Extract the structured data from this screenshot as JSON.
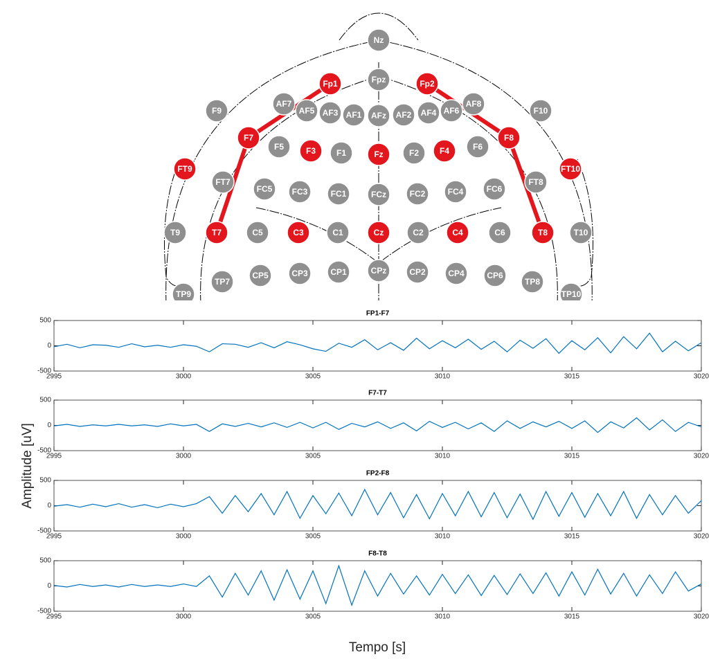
{
  "diagram": {
    "electrodes": [
      {
        "label": "Nz",
        "active": false
      },
      {
        "label": "Fp1",
        "active": true
      },
      {
        "label": "Fpz",
        "active": false
      },
      {
        "label": "Fp2",
        "active": true
      },
      {
        "label": "F9",
        "active": false
      },
      {
        "label": "AF7",
        "active": false
      },
      {
        "label": "AF5",
        "active": false
      },
      {
        "label": "AF3",
        "active": false
      },
      {
        "label": "AF1",
        "active": false
      },
      {
        "label": "AFz",
        "active": false
      },
      {
        "label": "AF2",
        "active": false
      },
      {
        "label": "AF4",
        "active": false
      },
      {
        "label": "AF6",
        "active": false
      },
      {
        "label": "AF8",
        "active": false
      },
      {
        "label": "F10",
        "active": false
      },
      {
        "label": "F7",
        "active": true
      },
      {
        "label": "F5",
        "active": false
      },
      {
        "label": "F3",
        "active": true
      },
      {
        "label": "F1",
        "active": false
      },
      {
        "label": "Fz",
        "active": true
      },
      {
        "label": "F2",
        "active": false
      },
      {
        "label": "F4",
        "active": true
      },
      {
        "label": "F6",
        "active": false
      },
      {
        "label": "F8",
        "active": true
      },
      {
        "label": "FT9",
        "active": true
      },
      {
        "label": "FT7",
        "active": false
      },
      {
        "label": "FC5",
        "active": false
      },
      {
        "label": "FC3",
        "active": false
      },
      {
        "label": "FC1",
        "active": false
      },
      {
        "label": "FCz",
        "active": false
      },
      {
        "label": "FC2",
        "active": false
      },
      {
        "label": "FC4",
        "active": false
      },
      {
        "label": "FC6",
        "active": false
      },
      {
        "label": "FT8",
        "active": false
      },
      {
        "label": "FT10",
        "active": true
      },
      {
        "label": "T9",
        "active": false
      },
      {
        "label": "T7",
        "active": true
      },
      {
        "label": "C5",
        "active": false
      },
      {
        "label": "C3",
        "active": true
      },
      {
        "label": "C1",
        "active": false
      },
      {
        "label": "Cz",
        "active": true
      },
      {
        "label": "C2",
        "active": false
      },
      {
        "label": "C4",
        "active": true
      },
      {
        "label": "C6",
        "active": false
      },
      {
        "label": "T8",
        "active": true
      },
      {
        "label": "T10",
        "active": false
      },
      {
        "label": "TP9",
        "active": false
      },
      {
        "label": "TP7",
        "active": false
      },
      {
        "label": "CP5",
        "active": false
      },
      {
        "label": "CP3",
        "active": false
      },
      {
        "label": "CP1",
        "active": false
      },
      {
        "label": "CPz",
        "active": false
      },
      {
        "label": "CP2",
        "active": false
      },
      {
        "label": "CP4",
        "active": false
      },
      {
        "label": "CP6",
        "active": false
      },
      {
        "label": "TP8",
        "active": false
      },
      {
        "label": "TP10",
        "active": false
      }
    ],
    "active_color": "#e3161d",
    "inactive_color": "#8f8f8f",
    "montage_color": "#e3161d"
  },
  "labels": {
    "y": "Amplitude [uV]",
    "x": "Tempo [s]"
  },
  "chart_data": [
    {
      "type": "line",
      "title": "FP1-F7",
      "color": "#0072bd",
      "xlim": [
        2995,
        3020
      ],
      "xticks": [
        2995,
        3000,
        3005,
        3010,
        3015,
        3020
      ],
      "ylim": [
        -500,
        500
      ],
      "yticks": [
        -500,
        0,
        500
      ],
      "x": [
        2995,
        2995.5,
        2996,
        2996.5,
        2997,
        2997.5,
        2998,
        2998.5,
        2999,
        2999.5,
        3000,
        3000.5,
        3001,
        3001.5,
        3002,
        3002.5,
        3003,
        3003.5,
        3004,
        3004.5,
        3005,
        3005.5,
        3006,
        3006.5,
        3007,
        3007.5,
        3008,
        3008.5,
        3009,
        3009.5,
        3010,
        3010.5,
        3011,
        3011.5,
        3012,
        3012.5,
        3013,
        3013.5,
        3014,
        3014.5,
        3015,
        3015.5,
        3016,
        3016.5,
        3017,
        3017.5,
        3018,
        3018.5,
        3019,
        3019.5,
        3020
      ],
      "values": [
        -20,
        30,
        -40,
        20,
        10,
        -30,
        40,
        -20,
        10,
        -30,
        20,
        -10,
        -120,
        40,
        30,
        -30,
        60,
        -40,
        80,
        20,
        -60,
        -110,
        50,
        -30,
        120,
        -80,
        60,
        -90,
        150,
        -60,
        100,
        -40,
        130,
        -70,
        90,
        -120,
        110,
        -50,
        140,
        -150,
        100,
        -80,
        160,
        -140,
        180,
        -60,
        250,
        -120,
        90,
        -100,
        60
      ]
    },
    {
      "type": "line",
      "title": "F7-T7",
      "color": "#0072bd",
      "xlim": [
        2995,
        3020
      ],
      "xticks": [
        2995,
        3000,
        3005,
        3010,
        3015,
        3020
      ],
      "ylim": [
        -500,
        500
      ],
      "yticks": [
        -500,
        0,
        500
      ],
      "x": [
        2995,
        2995.5,
        2996,
        2996.5,
        2997,
        2997.5,
        2998,
        2998.5,
        2999,
        2999.5,
        3000,
        3000.5,
        3001,
        3001.5,
        3002,
        3002.5,
        3003,
        3003.5,
        3004,
        3004.5,
        3005,
        3005.5,
        3006,
        3006.5,
        3007,
        3007.5,
        3008,
        3008.5,
        3009,
        3009.5,
        3010,
        3010.5,
        3011,
        3011.5,
        3012,
        3012.5,
        3013,
        3013.5,
        3014,
        3014.5,
        3015,
        3015.5,
        3016,
        3016.5,
        3017,
        3017.5,
        3018,
        3018.5,
        3019,
        3019.5,
        3020
      ],
      "values": [
        -10,
        20,
        -20,
        10,
        -10,
        20,
        -10,
        10,
        -20,
        30,
        -10,
        20,
        -120,
        30,
        -20,
        40,
        -30,
        50,
        -40,
        60,
        -50,
        60,
        -80,
        40,
        -30,
        70,
        -60,
        50,
        -110,
        80,
        -40,
        60,
        -70,
        50,
        -120,
        90,
        -60,
        70,
        -30,
        80,
        -60,
        90,
        -140,
        70,
        -50,
        150,
        -90,
        110,
        -120,
        60,
        -30
      ]
    },
    {
      "type": "line",
      "title": "FP2-F8",
      "color": "#0072bd",
      "xlim": [
        2995,
        3020
      ],
      "xticks": [
        2995,
        3000,
        3005,
        3010,
        3015,
        3020
      ],
      "ylim": [
        -500,
        500
      ],
      "yticks": [
        -500,
        0,
        500
      ],
      "x": [
        2995,
        2995.5,
        2996,
        2996.5,
        2997,
        2997.5,
        2998,
        2998.5,
        2999,
        2999.5,
        3000,
        3000.5,
        3001,
        3001.5,
        3002,
        3002.5,
        3003,
        3003.5,
        3004,
        3004.5,
        3005,
        3005.5,
        3006,
        3006.5,
        3007,
        3007.5,
        3008,
        3008.5,
        3009,
        3009.5,
        3010,
        3010.5,
        3011,
        3011.5,
        3012,
        3012.5,
        3013,
        3013.5,
        3014,
        3014.5,
        3015,
        3015.5,
        3016,
        3016.5,
        3017,
        3017.5,
        3018,
        3018.5,
        3019,
        3019.5,
        3020
      ],
      "values": [
        -10,
        20,
        -30,
        30,
        -20,
        40,
        -30,
        20,
        -40,
        30,
        -20,
        40,
        180,
        -150,
        200,
        -120,
        240,
        -180,
        280,
        -250,
        200,
        -160,
        250,
        -200,
        320,
        -180,
        260,
        -240,
        220,
        -260,
        240,
        -200,
        280,
        -220,
        260,
        -240,
        230,
        -270,
        280,
        -210,
        260,
        -230,
        240,
        -200,
        280,
        -250,
        220,
        -180,
        200,
        -150,
        100
      ]
    },
    {
      "type": "line",
      "title": "F8-T8",
      "color": "#0072bd",
      "xlim": [
        2995,
        3020
      ],
      "xticks": [
        2995,
        3000,
        3005,
        3010,
        3015,
        3020
      ],
      "ylim": [
        -500,
        500
      ],
      "yticks": [
        -500,
        0,
        500
      ],
      "x": [
        2995,
        2995.5,
        2996,
        2996.5,
        2997,
        2997.5,
        2998,
        2998.5,
        2999,
        2999.5,
        3000,
        3000.5,
        3001,
        3001.5,
        3002,
        3002.5,
        3003,
        3003.5,
        3004,
        3004.5,
        3005,
        3005.5,
        3006,
        3006.5,
        3007,
        3007.5,
        3008,
        3008.5,
        3009,
        3009.5,
        3010,
        3010.5,
        3011,
        3011.5,
        3012,
        3012.5,
        3013,
        3013.5,
        3014,
        3014.5,
        3015,
        3015.5,
        3016,
        3016.5,
        3017,
        3017.5,
        3018,
        3018.5,
        3019,
        3019.5,
        3020
      ],
      "values": [
        10,
        -20,
        30,
        -10,
        20,
        -20,
        30,
        -10,
        20,
        -10,
        40,
        -10,
        200,
        -220,
        250,
        -180,
        300,
        -280,
        320,
        -260,
        300,
        -350,
        400,
        -380,
        300,
        -200,
        250,
        -160,
        200,
        -180,
        230,
        -150,
        220,
        -190,
        210,
        -170,
        240,
        -150,
        260,
        -200,
        280,
        -180,
        330,
        -160,
        250,
        -200,
        220,
        -150,
        280,
        -100,
        40
      ]
    }
  ]
}
